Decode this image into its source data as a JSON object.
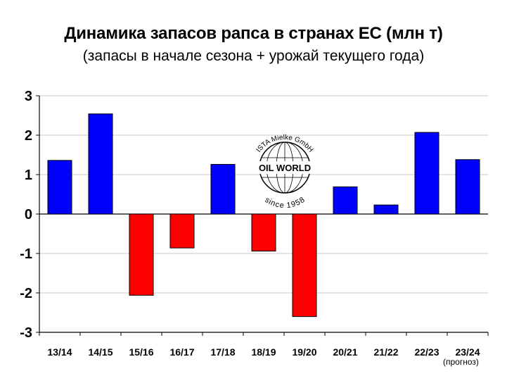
{
  "title": "Динамика запасов рапса в странах ЕС (млн т)",
  "subtitle": "(запасы в начале сезона + урожай текущего года)",
  "footnote": "(прогноз)",
  "logo": {
    "top_text": "ISTA Mielke GmbH",
    "center_text": "OIL WORLD",
    "bottom_text": "since 1958"
  },
  "colors": {
    "positive": "#0000ff",
    "negative": "#ff0000",
    "grid": "#c8c8c8",
    "axis": "#000000"
  },
  "chart_data": {
    "type": "bar",
    "categories": [
      "13/14",
      "14/15",
      "15/16",
      "16/17",
      "17/18",
      "18/19",
      "19/20",
      "20/21",
      "21/22",
      "22/23",
      "23/24"
    ],
    "values": [
      1.36,
      2.54,
      -2.06,
      -0.86,
      1.26,
      -0.94,
      -2.6,
      0.69,
      0.23,
      2.07,
      1.38
    ],
    "title": "Динамика запасов рапса в странах ЕС (млн т)",
    "subtitle": "(запасы в начале сезона + урожай текущего года)",
    "xlabel": "",
    "ylabel": "",
    "ylim": [
      -3,
      3
    ],
    "yticks": [
      3,
      2,
      1,
      0,
      -1,
      -2,
      -3
    ],
    "grid": true,
    "legend": "none"
  }
}
